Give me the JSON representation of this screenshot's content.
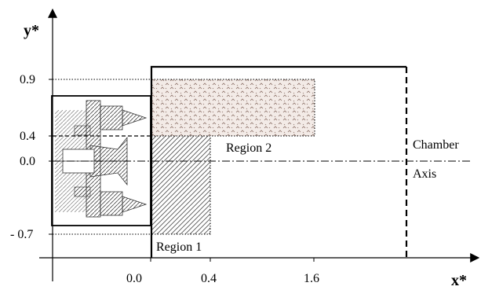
{
  "labels": {
    "y_axis": "y*",
    "x_axis": "x*",
    "y_ticks": [
      "0.9",
      "0.4",
      "0.0",
      "- 0.7"
    ],
    "x_ticks": [
      "0.0",
      "0.4",
      "1.6"
    ],
    "region1": "Region 1",
    "region2": "Region 2",
    "chamber": "Chamber",
    "axis": "Axis"
  }
}
